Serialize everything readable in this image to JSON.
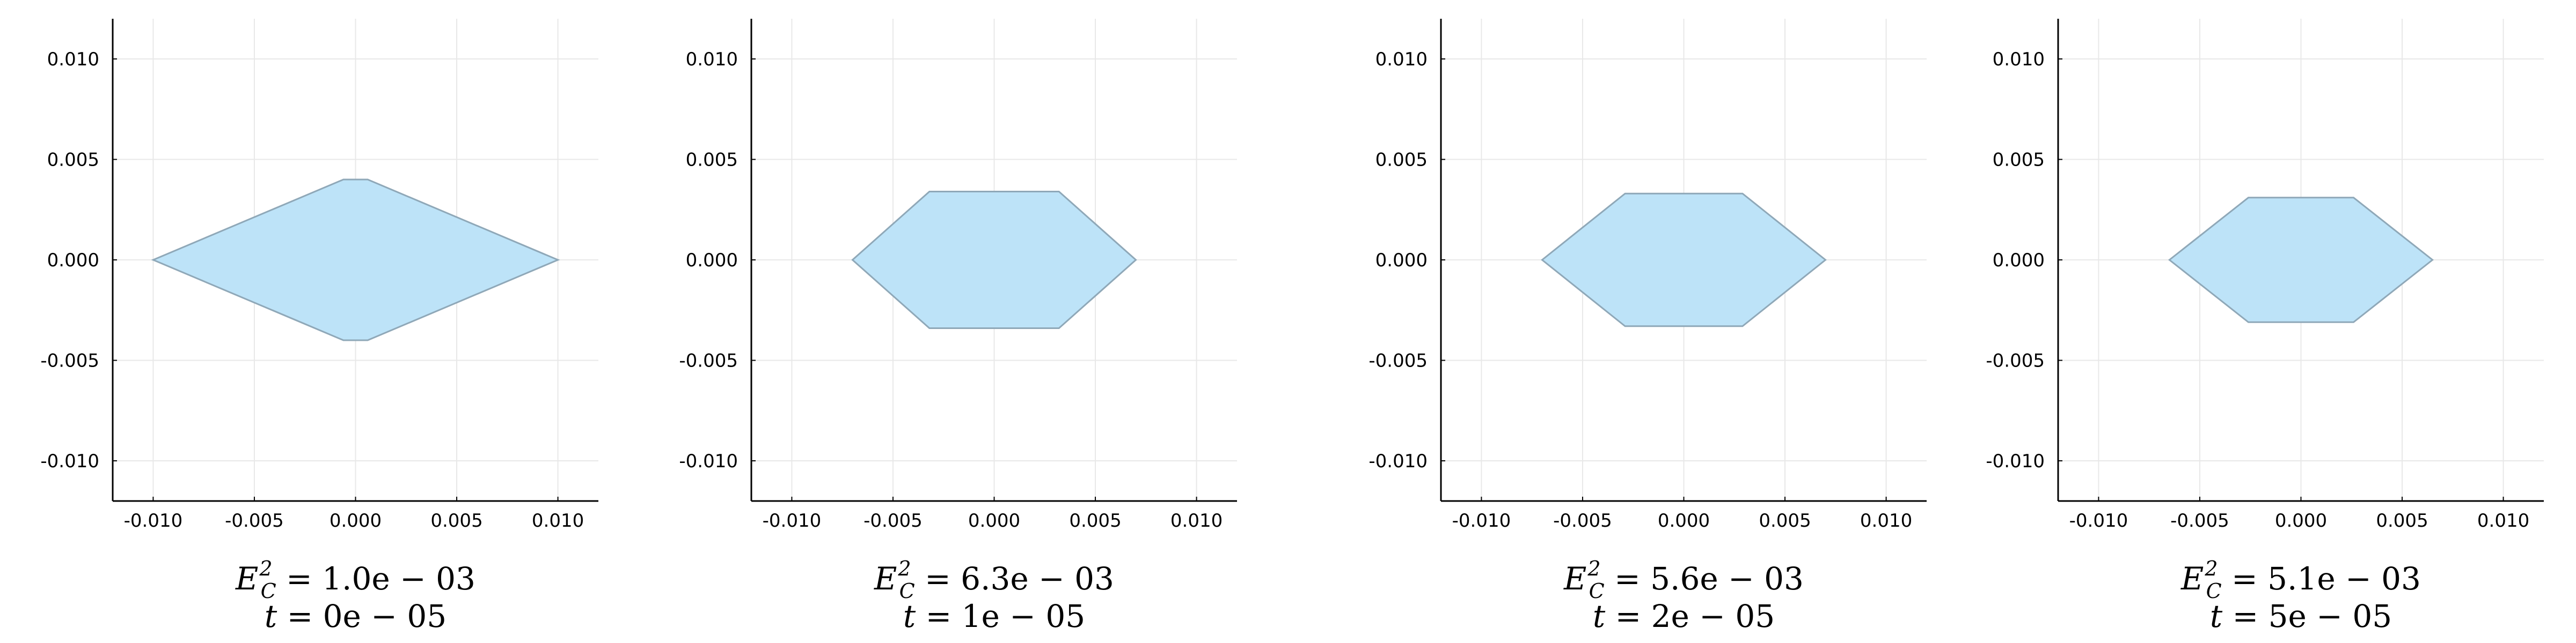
{
  "chart_data": [
    {
      "type": "area",
      "title": "",
      "xlabel": "",
      "ylabel": "",
      "xlim": [
        -0.012,
        0.012
      ],
      "ylim": [
        -0.012,
        0.012
      ],
      "xticks": [
        "-0.010",
        "-0.005",
        "0.000",
        "0.005",
        "0.010"
      ],
      "yticks": [
        "-0.010",
        "-0.005",
        "0.000",
        "0.005",
        "0.010"
      ],
      "grid": true,
      "fill_color": "#bde3f8",
      "stroke_color": "#8fa8b8",
      "polygon": {
        "x": [
          -0.01,
          -0.0006,
          0.0006,
          0.01,
          0.0006,
          -0.0006
        ],
        "y": [
          0.0,
          0.004,
          0.004,
          0.0,
          -0.004,
          -0.004
        ]
      },
      "caption": {
        "e_label": "E",
        "e_sub": "C",
        "e_sup": "2",
        "e_value": " = 1.0e − 03",
        "t_label": "t",
        "t_value": " = 0e − 05"
      }
    },
    {
      "type": "area",
      "title": "",
      "xlabel": "",
      "ylabel": "",
      "xlim": [
        -0.012,
        0.012
      ],
      "ylim": [
        -0.012,
        0.012
      ],
      "xticks": [
        "-0.010",
        "-0.005",
        "0.000",
        "0.005",
        "0.010"
      ],
      "yticks": [
        "-0.010",
        "-0.005",
        "0.000",
        "0.005",
        "0.010"
      ],
      "grid": true,
      "fill_color": "#bde3f8",
      "stroke_color": "#8fa8b8",
      "polygon": {
        "x": [
          -0.007,
          -0.0032,
          0.0032,
          0.007,
          0.0032,
          -0.0032
        ],
        "y": [
          0.0,
          0.0034,
          0.0034,
          0.0,
          -0.0034,
          -0.0034
        ]
      },
      "caption": {
        "e_label": "E",
        "e_sub": "C",
        "e_sup": "2",
        "e_value": " = 6.3e − 03",
        "t_label": "t",
        "t_value": " = 1e − 05"
      }
    },
    {
      "type": "area",
      "title": "",
      "xlabel": "",
      "ylabel": "",
      "xlim": [
        -0.012,
        0.012
      ],
      "ylim": [
        -0.012,
        0.012
      ],
      "xticks": [
        "-0.010",
        "-0.005",
        "0.000",
        "0.005",
        "0.010"
      ],
      "yticks": [
        "-0.010",
        "-0.005",
        "0.000",
        "0.005",
        "0.010"
      ],
      "grid": true,
      "fill_color": "#bde3f8",
      "stroke_color": "#8fa8b8",
      "polygon": {
        "x": [
          -0.007,
          -0.0029,
          0.0029,
          0.007,
          0.0029,
          -0.0029
        ],
        "y": [
          0.0,
          0.0033,
          0.0033,
          0.0,
          -0.0033,
          -0.0033
        ]
      },
      "caption": {
        "e_label": "E",
        "e_sub": "C",
        "e_sup": "2",
        "e_value": " = 5.6e − 03",
        "t_label": "t",
        "t_value": " = 2e − 05"
      }
    },
    {
      "type": "area",
      "title": "",
      "xlabel": "",
      "ylabel": "",
      "xlim": [
        -0.012,
        0.012
      ],
      "ylim": [
        -0.012,
        0.012
      ],
      "xticks": [
        "-0.010",
        "-0.005",
        "0.000",
        "0.005",
        "0.010"
      ],
      "yticks": [
        "-0.010",
        "-0.005",
        "0.000",
        "0.005",
        "0.010"
      ],
      "grid": true,
      "fill_color": "#bde3f8",
      "stroke_color": "#8fa8b8",
      "polygon": {
        "x": [
          -0.0065,
          -0.0026,
          0.0026,
          0.0065,
          0.0026,
          -0.0026
        ],
        "y": [
          0.0,
          0.0031,
          0.0031,
          0.0,
          -0.0031,
          -0.0031
        ]
      },
      "caption": {
        "e_label": "E",
        "e_sub": "C",
        "e_sup": "2",
        "e_value": " = 5.1e − 03",
        "t_label": "t",
        "t_value": " = 5e − 05"
      }
    }
  ]
}
